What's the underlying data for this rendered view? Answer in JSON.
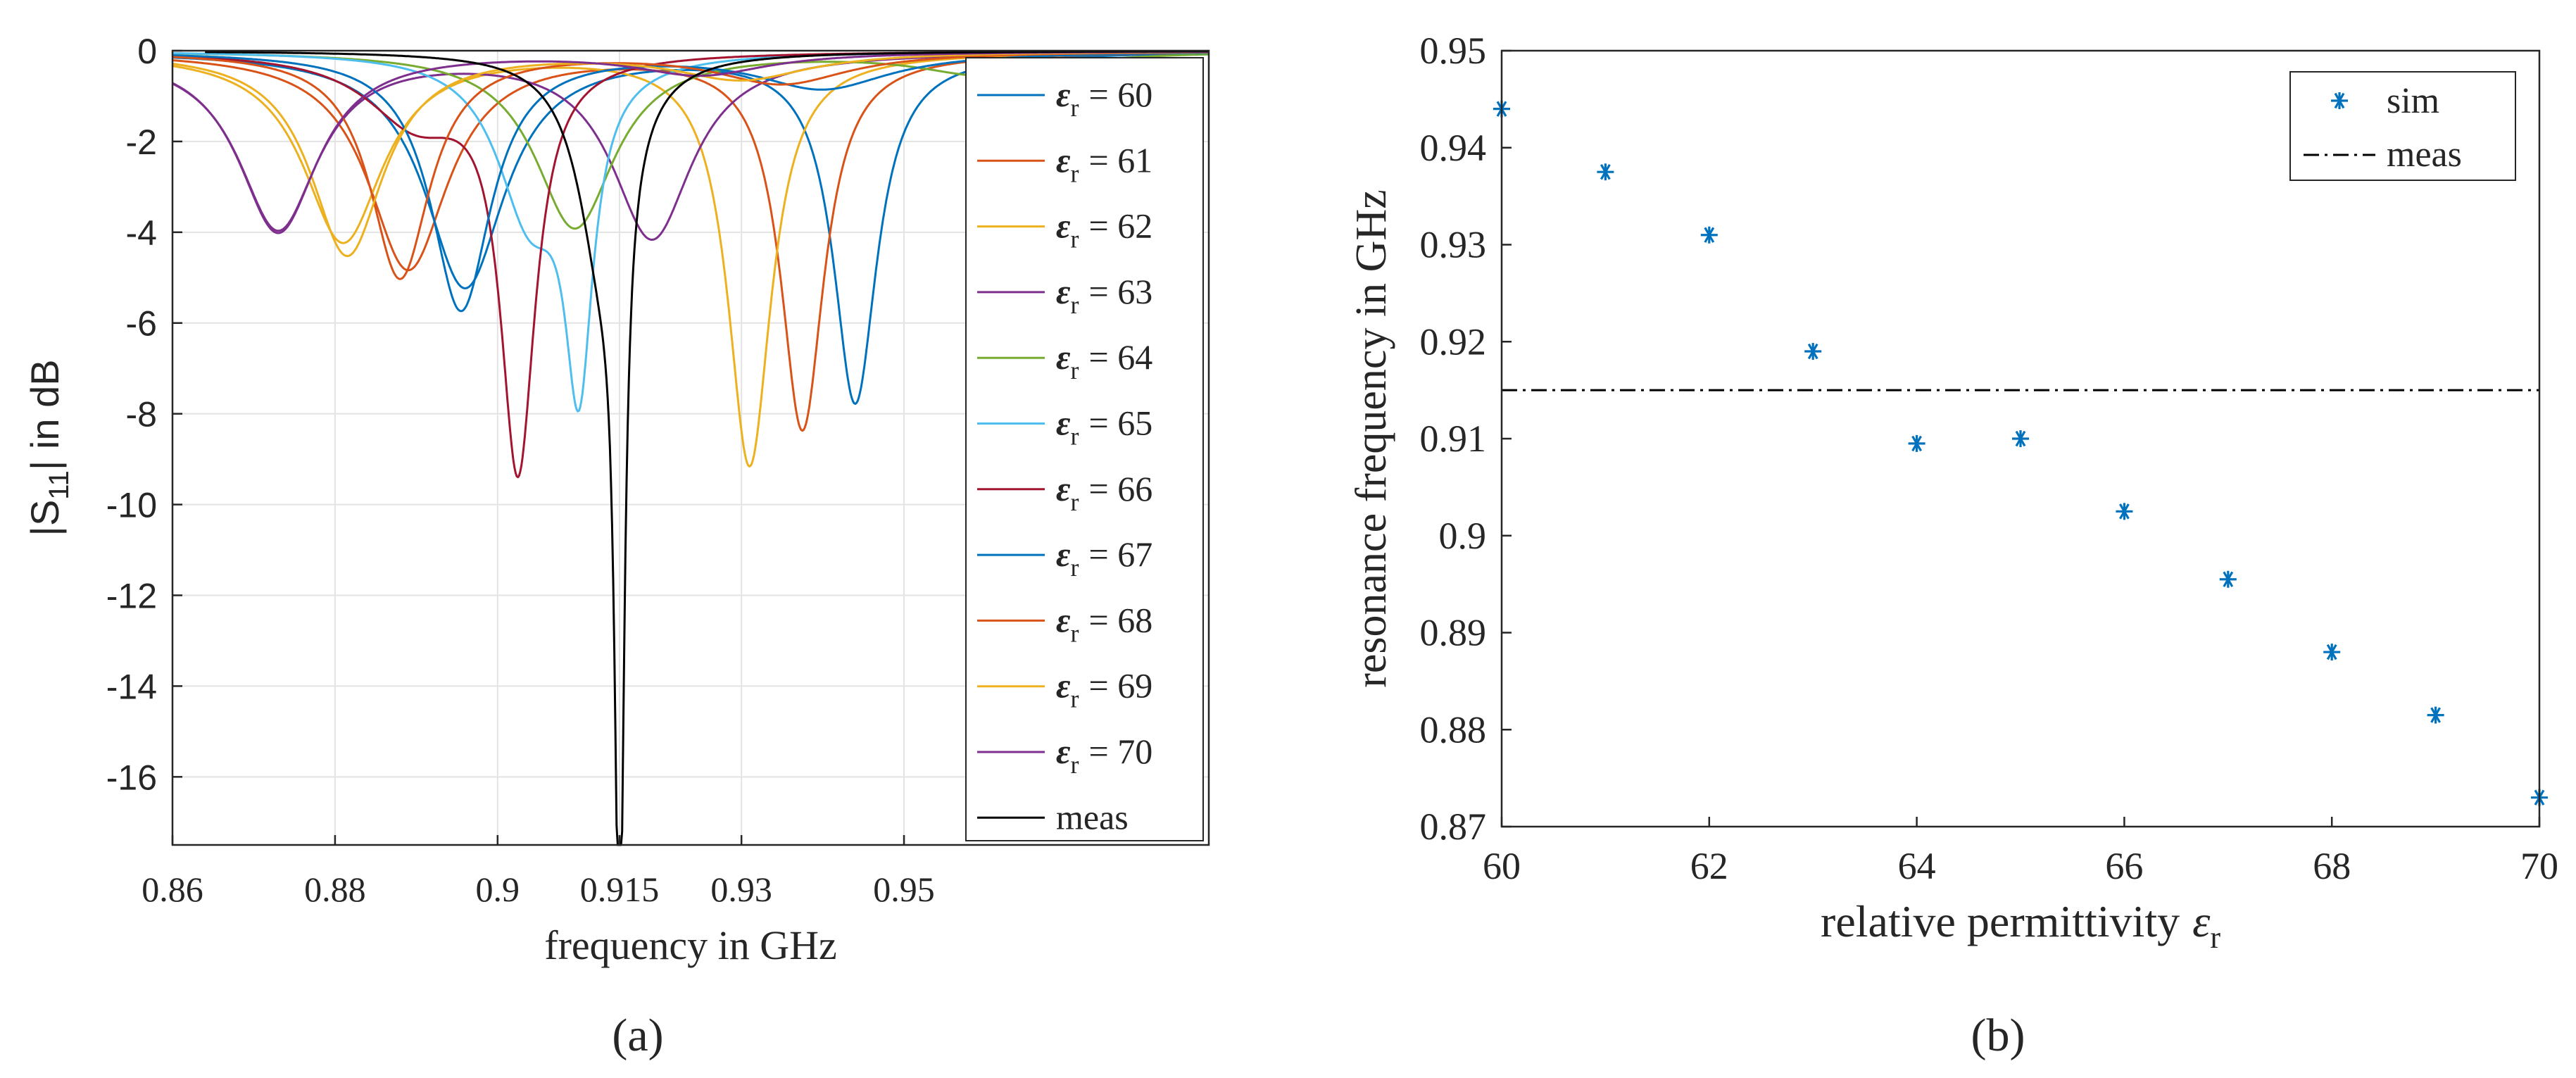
{
  "chart_data": [
    {
      "type": "line",
      "panel_label": "(a)",
      "xlabel": "frequency in GHz",
      "ylabel_parts": [
        "|S",
        "11",
        "| in dB"
      ],
      "xlim": [
        0.86,
        0.9875
      ],
      "ylim": [
        -17.5,
        0
      ],
      "xticks": [
        0.86,
        0.88,
        0.9,
        0.915,
        0.93,
        0.95
      ],
      "xtick_labels": [
        "0.86",
        "0.88",
        "0.9",
        "0.915",
        "0.93",
        "0.95"
      ],
      "yticks": [
        0,
        -2,
        -4,
        -6,
        -8,
        -10,
        -12,
        -14,
        -16
      ],
      "ytick_labels": [
        "0",
        "-2",
        "-4",
        "-6",
        "-8",
        "-10",
        "-12",
        "-14",
        "-16"
      ],
      "grid": true,
      "legend_position": "right",
      "series": [
        {
          "name": "ε r = 60",
          "sym": "ε",
          "sub": "r",
          "val": "= 60",
          "color": "#0072BD",
          "f0": 0.944,
          "depth": -7.7,
          "width": 0.0065,
          "f2": 0.896,
          "depth2": -5.2,
          "width2": 0.012
        },
        {
          "name": "ε r = 61",
          "sym": "ε",
          "sub": "r",
          "val": "= 61",
          "color": "#D95319",
          "f0": 0.9375,
          "depth": -8.3,
          "width": 0.0065,
          "f2": 0.889,
          "depth2": -4.8,
          "width2": 0.012
        },
        {
          "name": "ε r = 62",
          "sym": "ε",
          "sub": "r",
          "val": "= 62",
          "color": "#EDB120",
          "f0": 0.931,
          "depth": -9.1,
          "width": 0.0065,
          "f2": 0.881,
          "depth2": -4.2,
          "width2": 0.012
        },
        {
          "name": "ε r = 63",
          "sym": "ε",
          "sub": "r",
          "val": "= 63",
          "color": "#7E2F8E",
          "f0": 0.919,
          "depth": -4.1,
          "width": 0.012,
          "f2": 0.873,
          "depth2": -3.9,
          "width2": 0.012
        },
        {
          "name": "ε r = 64",
          "sym": "ε",
          "sub": "r",
          "val": "= 64",
          "color": "#77AC30",
          "f0": 0.9095,
          "depth": -3.9,
          "width": 0.012,
          "f2": 0.96,
          "depth2": -0.5,
          "width2": 0.02
        },
        {
          "name": "ε r = 65",
          "sym": "ε",
          "sub": "r",
          "val": "= 65",
          "color": "#4DBEEE",
          "f0": 0.91,
          "depth": -6.5,
          "width": 0.0042,
          "f2": 0.904,
          "depth2": -3.5,
          "width2": 0.01
        },
        {
          "name": "ε r = 66",
          "sym": "ε",
          "sub": "r",
          "val": "= 66",
          "color": "#A2142F",
          "f0": 0.9025,
          "depth": -9.0,
          "width": 0.0052,
          "f2": 0.89,
          "depth2": -1.5,
          "width2": 0.015
        },
        {
          "name": "ε r = 67",
          "sym": "ε",
          "sub": "r",
          "val": "= 67",
          "color": "#0072BD",
          "f0": 0.8955,
          "depth": -5.7,
          "width": 0.009,
          "f2": 0.94,
          "depth2": -0.8,
          "width2": 0.02
        },
        {
          "name": "ε r = 68",
          "sym": "ε",
          "sub": "r",
          "val": "= 68",
          "color": "#D95319",
          "f0": 0.888,
          "depth": -5.0,
          "width": 0.009,
          "f2": 0.935,
          "depth2": -0.7,
          "width2": 0.02
        },
        {
          "name": "ε r = 69",
          "sym": "ε",
          "sub": "r",
          "val": "= 69",
          "color": "#EDB120",
          "f0": 0.8815,
          "depth": -4.5,
          "width": 0.011,
          "f2": 0.93,
          "depth2": -0.6,
          "width2": 0.02
        },
        {
          "name": "ε r = 70",
          "sym": "ε",
          "sub": "r",
          "val": "= 70",
          "color": "#7E2F8E",
          "f0": 0.873,
          "depth": -4.0,
          "width": 0.012,
          "f2": 0.925,
          "depth2": -0.5,
          "width2": 0.02
        },
        {
          "name": "meas",
          "label": "meas",
          "color": "#000000",
          "f0": 0.915,
          "depth": -16.8,
          "width": 0.0014,
          "f2": 0.913,
          "depth2": -4.6,
          "width2": 0.0075,
          "xmin": 0.864
        }
      ]
    },
    {
      "type": "scatter",
      "panel_label": "(b)",
      "xlabel": "relative permittivity",
      "xlabel_sym": "ε",
      "xlabel_sub": "r",
      "ylabel": "resonance frequency in GHz",
      "xlim": [
        60,
        70
      ],
      "ylim": [
        0.87,
        0.95
      ],
      "xticks": [
        60,
        62,
        64,
        66,
        68,
        70
      ],
      "xtick_labels": [
        "60",
        "62",
        "64",
        "66",
        "68",
        "70"
      ],
      "yticks": [
        0.87,
        0.88,
        0.89,
        0.9,
        0.91,
        0.92,
        0.93,
        0.94,
        0.95
      ],
      "ytick_labels": [
        "0.87",
        "0.88",
        "0.89",
        "0.9",
        "0.91",
        "0.92",
        "0.93",
        "0.94",
        "0.95"
      ],
      "grid": false,
      "legend_position": "top-right",
      "series": [
        {
          "name": "sim",
          "color": "#0072BD",
          "marker": "asterisk",
          "x": [
            60,
            61,
            62,
            63,
            64,
            65,
            66,
            67,
            68,
            69,
            70
          ],
          "y": [
            0.944,
            0.9375,
            0.931,
            0.919,
            0.9095,
            0.91,
            0.9025,
            0.8955,
            0.888,
            0.8815,
            0.873
          ]
        },
        {
          "name": "meas",
          "color": "#000000",
          "style": "dash-dot",
          "y": 0.915
        }
      ]
    }
  ]
}
